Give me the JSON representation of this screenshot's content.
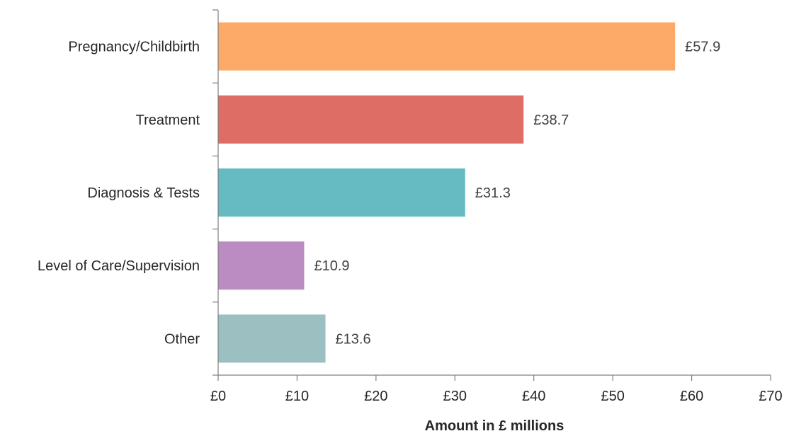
{
  "chart_data": {
    "type": "bar",
    "orientation": "horizontal",
    "categories": [
      "Pregnancy/Childbirth",
      "Treatment",
      "Diagnosis & Tests",
      "Level of Care/Supervision",
      "Other"
    ],
    "values": [
      57.9,
      38.7,
      31.3,
      10.9,
      13.6
    ],
    "data_labels": [
      "£57.9",
      "£38.7",
      "£31.3",
      "£10.9",
      "£13.6"
    ],
    "colors": [
      "#FDA967",
      "#DE6E65",
      "#66BBC3",
      "#BB8CC1",
      "#9CC0C1"
    ],
    "xlabel": "Amount in £ millions",
    "ylabel": "",
    "title": "",
    "xlim": [
      0,
      70
    ],
    "x_ticks": [
      0,
      10,
      20,
      30,
      40,
      50,
      60,
      70
    ],
    "x_tick_labels": [
      "£0",
      "£10",
      "£20",
      "£30",
      "£40",
      "£50",
      "£60",
      "£70"
    ],
    "grid": false,
    "legend": "none"
  }
}
